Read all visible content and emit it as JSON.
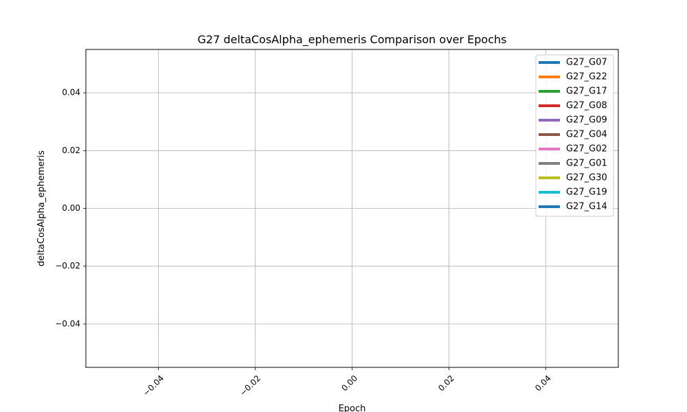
{
  "chart_data": {
    "type": "line",
    "title": "G27 deltaCosAlpha_ephemeris Comparison over Epochs",
    "xlabel": "Epoch",
    "ylabel": "deltaCosAlpha_ephemeris",
    "xlim": [
      -0.055,
      0.055
    ],
    "ylim": [
      -0.055,
      0.055
    ],
    "x_ticks": [
      -0.04,
      -0.02,
      0.0,
      0.02,
      0.04
    ],
    "x_tick_labels": [
      "−0.04",
      "−0.02",
      "0.00",
      "0.02",
      "0.04"
    ],
    "y_ticks": [
      0.04,
      0.02,
      0.0,
      -0.02,
      -0.04
    ],
    "y_tick_labels": [
      "0.04",
      "0.02",
      "0.00",
      "−0.02",
      "−0.04"
    ],
    "x_tick_rotation_deg": 45,
    "grid": true,
    "legend_position": "top-right",
    "series": [
      {
        "name": "G27_G07",
        "color": "#1f77b4",
        "x": [],
        "y": []
      },
      {
        "name": "G27_G22",
        "color": "#ff7f0e",
        "x": [],
        "y": []
      },
      {
        "name": "G27_G17",
        "color": "#2ca02c",
        "x": [],
        "y": []
      },
      {
        "name": "G27_G08",
        "color": "#d62728",
        "x": [],
        "y": []
      },
      {
        "name": "G27_G09",
        "color": "#9467bd",
        "x": [],
        "y": []
      },
      {
        "name": "G27_G04",
        "color": "#8c564b",
        "x": [],
        "y": []
      },
      {
        "name": "G27_G02",
        "color": "#e377c2",
        "x": [],
        "y": []
      },
      {
        "name": "G27_G01",
        "color": "#7f7f7f",
        "x": [],
        "y": []
      },
      {
        "name": "G27_G30",
        "color": "#bcbd22",
        "x": [],
        "y": []
      },
      {
        "name": "G27_G19",
        "color": "#17becf",
        "x": [],
        "y": []
      },
      {
        "name": "G27_G14",
        "color": "#1f77b4",
        "x": [],
        "y": []
      }
    ]
  }
}
